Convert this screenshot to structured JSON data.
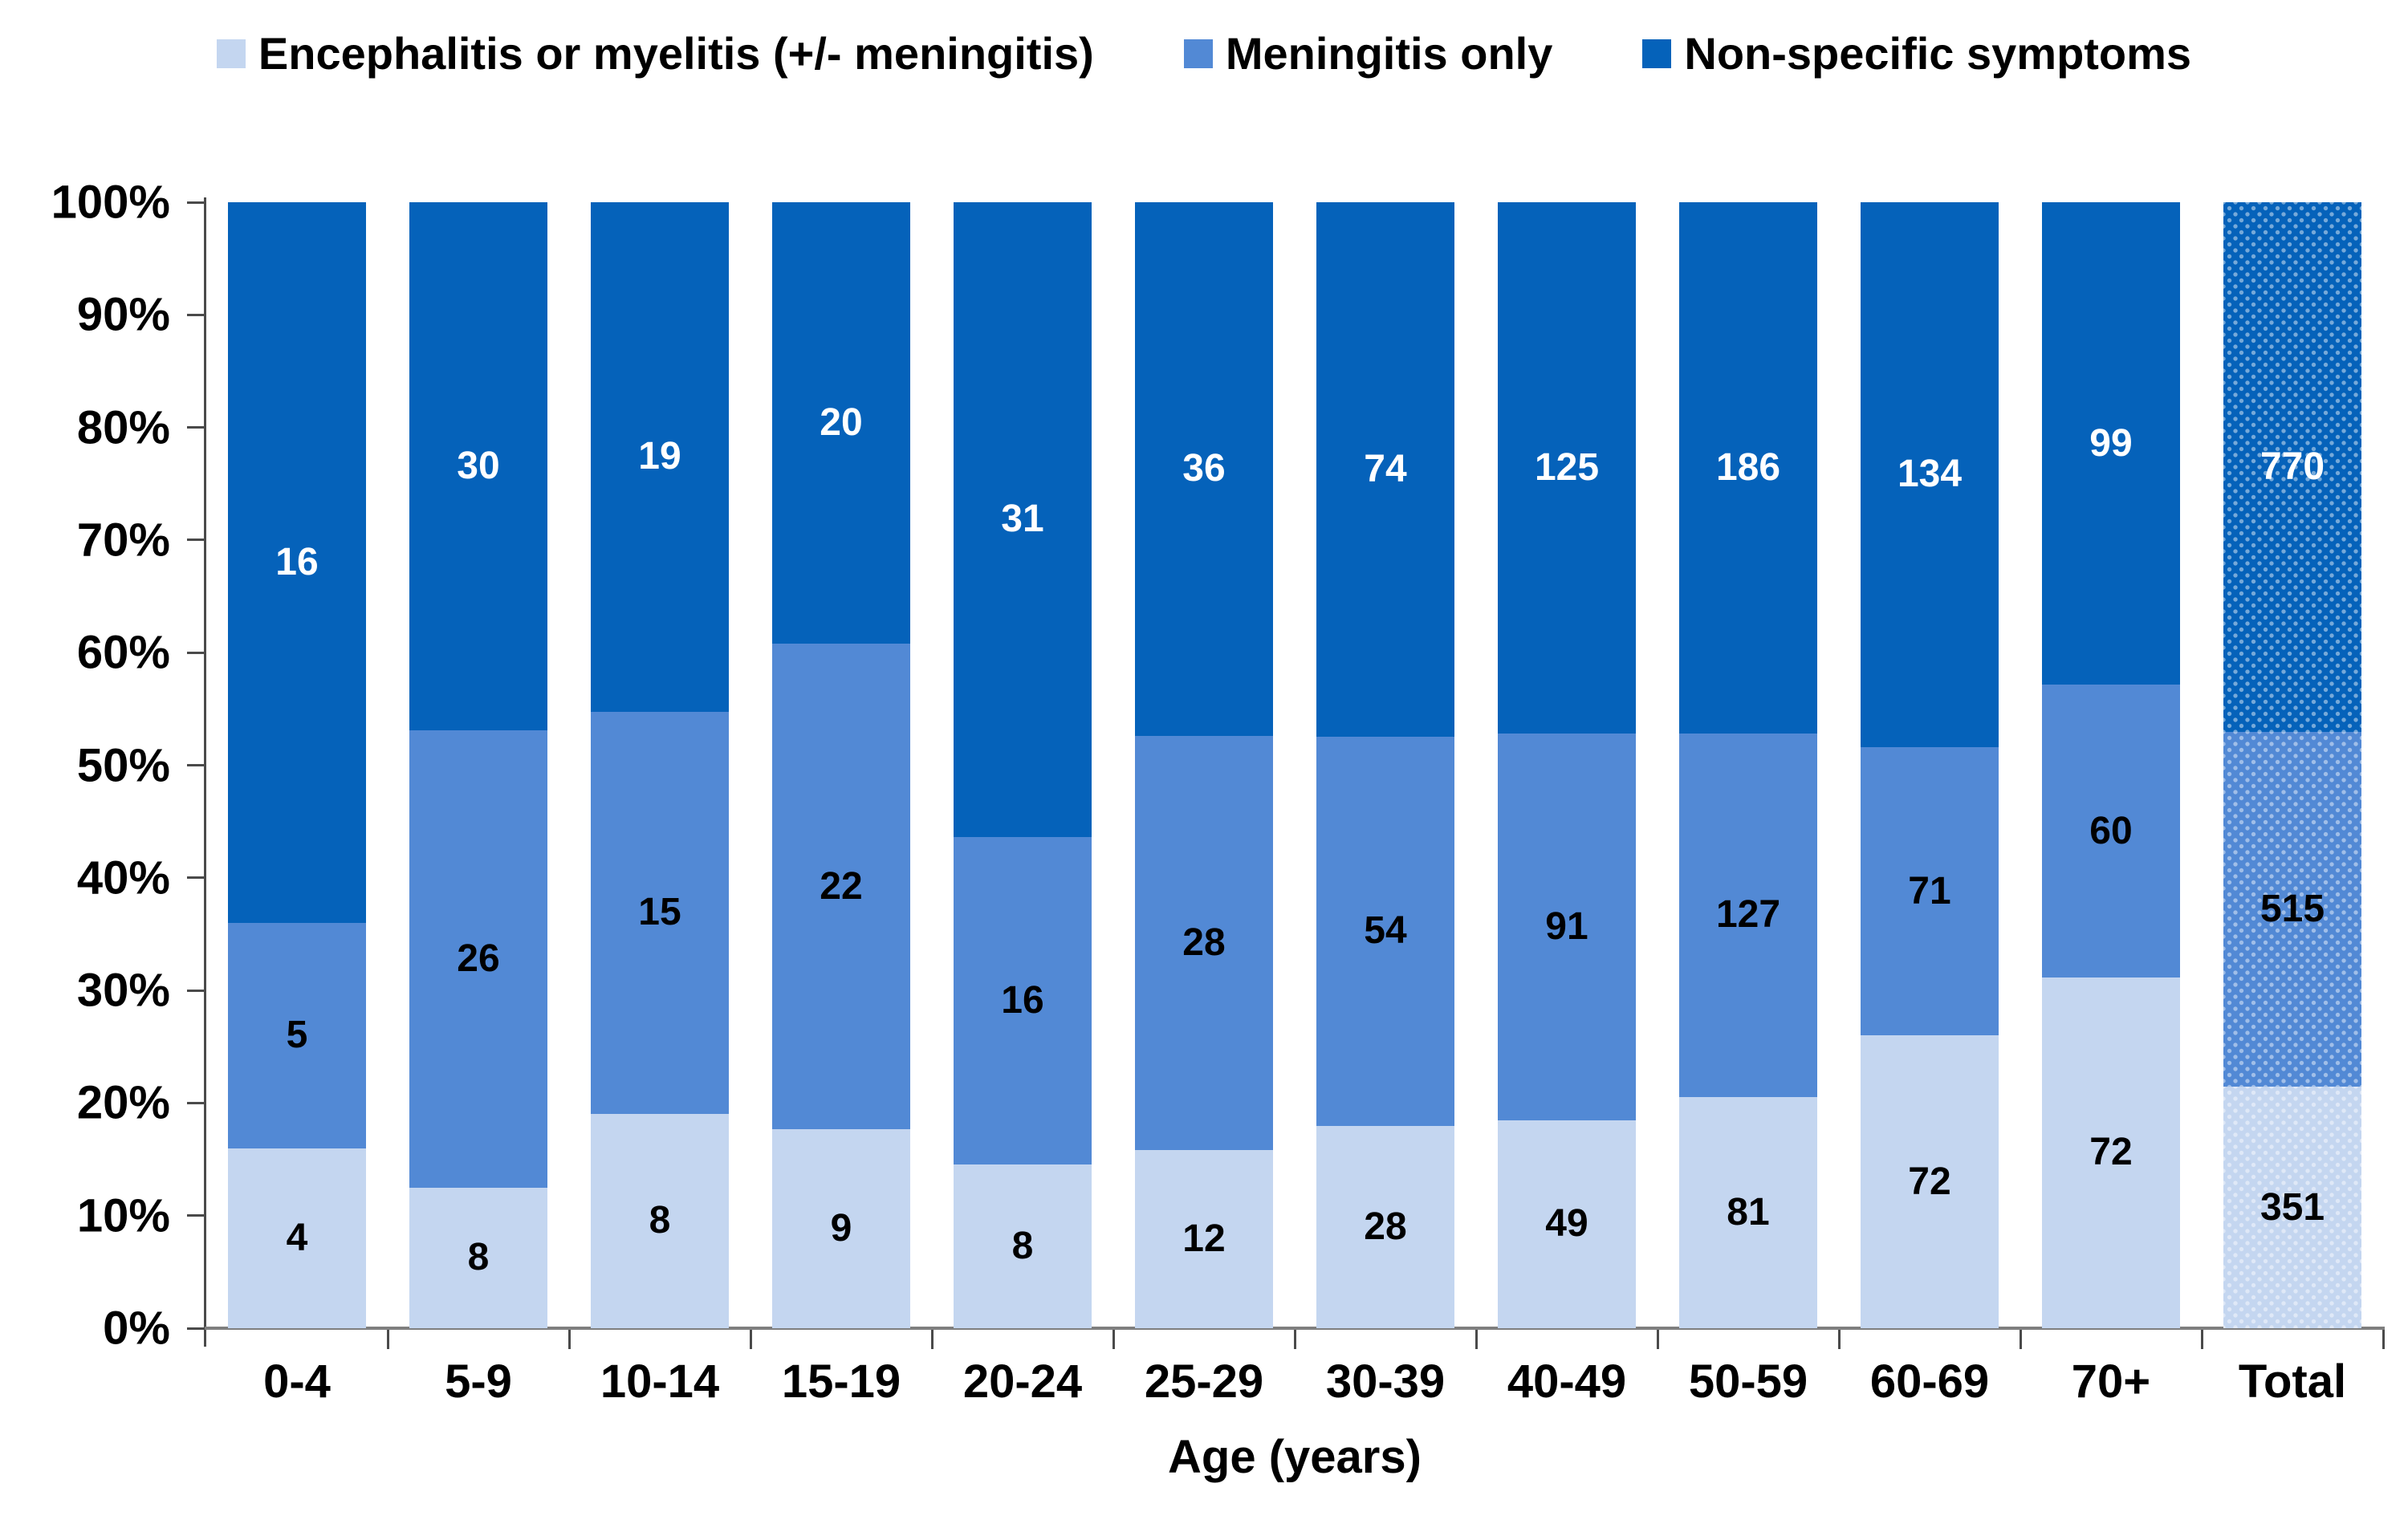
{
  "chart_data": {
    "type": "bar",
    "subtype": "stacked-100-percent",
    "grid": false,
    "legend_position": "top",
    "xlabel": "Age (years)",
    "ylim": [
      0,
      100
    ],
    "y_ticks": [
      "0%",
      "10%",
      "20%",
      "30%",
      "40%",
      "50%",
      "60%",
      "70%",
      "80%",
      "90%",
      "100%"
    ],
    "categories": [
      "0-4",
      "5-9",
      "10-14",
      "15-19",
      "20-24",
      "25-29",
      "30-39",
      "40-49",
      "50-59",
      "60-69",
      "70+",
      "Total"
    ],
    "patterned_categories": [
      "Total"
    ],
    "series": [
      {
        "name": "Encephalitis or myelitis (+/- meningitis)",
        "color": "#c4d6f0",
        "label_color": "#000000",
        "values": [
          4,
          8,
          8,
          9,
          8,
          12,
          28,
          49,
          81,
          72,
          72,
          351
        ]
      },
      {
        "name": "Meningitis only",
        "color": "#5289d5",
        "label_color": "#000000",
        "values": [
          5,
          26,
          15,
          22,
          16,
          28,
          54,
          91,
          127,
          71,
          60,
          515
        ]
      },
      {
        "name": "Non-specific symptoms",
        "color": "#0562ba",
        "label_color": "#ffffff",
        "values": [
          16,
          30,
          19,
          20,
          31,
          36,
          74,
          125,
          186,
          134,
          99,
          770
        ]
      }
    ]
  }
}
